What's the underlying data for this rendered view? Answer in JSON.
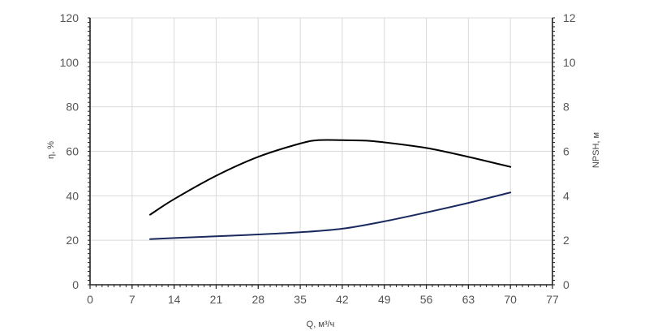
{
  "chart_data": {
    "type": "line",
    "xlabel": "Q, м³/ч",
    "ylabel_left": "η, %",
    "ylabel_right": "NPSH, м",
    "x_ticks": [
      "0",
      "7",
      "14",
      "21",
      "28",
      "35",
      "42",
      "49",
      "56",
      "63",
      "70",
      "77"
    ],
    "y_left_ticks": [
      "0",
      "20",
      "40",
      "60",
      "80",
      "100",
      "120"
    ],
    "y_right_ticks": [
      "0",
      "2",
      "4",
      "6",
      "8",
      "10",
      "12"
    ],
    "xlim": [
      0,
      77
    ],
    "ylim_left": [
      0,
      120
    ],
    "ylim_right": [
      0,
      12
    ],
    "grid": true,
    "series": [
      {
        "axis": "left",
        "color": "#000000",
        "x": [
          10,
          14,
          21,
          28,
          35,
          38,
          42,
          46,
          49,
          56,
          63,
          70
        ],
        "y": [
          31.5,
          38.5,
          49,
          57.5,
          63.5,
          65,
          65,
          64.8,
          64,
          61.5,
          57.5,
          53
        ]
      },
      {
        "axis": "right",
        "color": "#1a2a5e",
        "x": [
          10,
          14,
          21,
          28,
          35,
          42,
          49,
          56,
          63,
          70
        ],
        "y": [
          2.05,
          2.1,
          2.18,
          2.26,
          2.36,
          2.52,
          2.85,
          3.25,
          3.68,
          4.15
        ]
      }
    ]
  }
}
